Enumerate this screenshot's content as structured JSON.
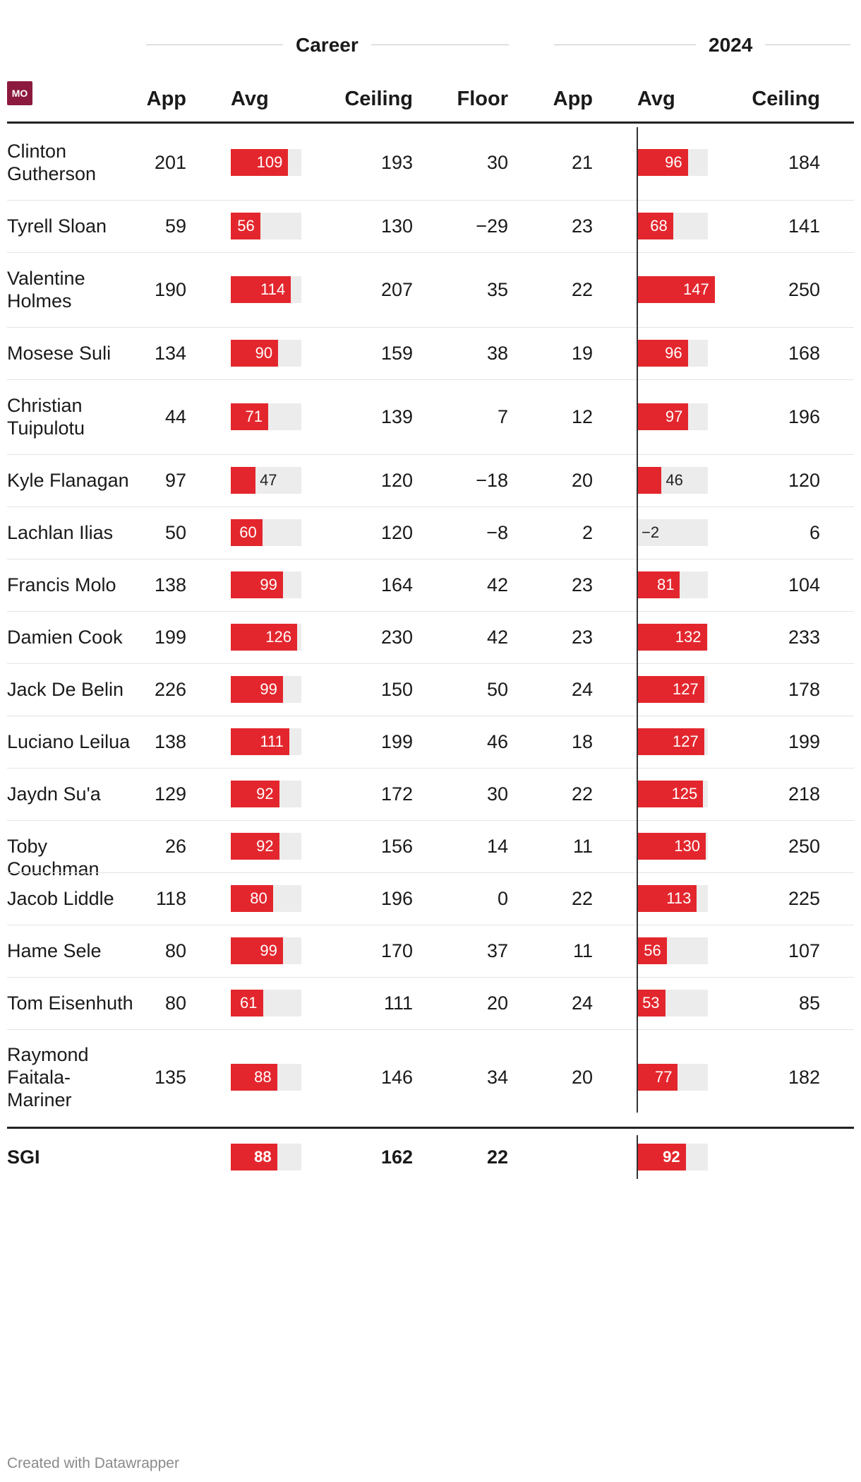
{
  "group_headers": [
    "Career",
    "2024"
  ],
  "team_logo_text": "MO",
  "columns": [
    "App",
    "Avg",
    "Ceiling",
    "Floor",
    "App",
    "Avg",
    "Ceiling"
  ],
  "chart_data": {
    "type": "table",
    "bar_columns": [
      "Career Avg",
      "2024 Avg"
    ],
    "colors": {
      "bar": "#e3262d",
      "track": "#ececec",
      "logo": "#8b1a3e"
    },
    "rows": [
      {
        "name": "Clinton Gutherson",
        "career_app": "201",
        "career_avg": 109,
        "ceiling": "193",
        "floor": "30",
        "app_2024": "21",
        "avg_2024": 96,
        "ceiling_2024": "184"
      },
      {
        "name": "Tyrell Sloan",
        "career_app": "59",
        "career_avg": 56,
        "ceiling": "130",
        "floor": "−29",
        "app_2024": "23",
        "avg_2024": 68,
        "ceiling_2024": "141"
      },
      {
        "name": "Valentine Holmes",
        "career_app": "190",
        "career_avg": 114,
        "ceiling": "207",
        "floor": "35",
        "app_2024": "22",
        "avg_2024": 147,
        "ceiling_2024": "250"
      },
      {
        "name": "Mosese Suli",
        "career_app": "134",
        "career_avg": 90,
        "ceiling": "159",
        "floor": "38",
        "app_2024": "19",
        "avg_2024": 96,
        "ceiling_2024": "168"
      },
      {
        "name": "Christian Tuipulotu",
        "career_app": "44",
        "career_avg": 71,
        "ceiling": "139",
        "floor": "7",
        "app_2024": "12",
        "avg_2024": 97,
        "ceiling_2024": "196"
      },
      {
        "name": "Kyle Flanagan",
        "career_app": "97",
        "career_avg": 47,
        "ceiling": "120",
        "floor": "−18",
        "app_2024": "20",
        "avg_2024": 46,
        "ceiling_2024": "120"
      },
      {
        "name": "Lachlan Ilias",
        "career_app": "50",
        "career_avg": 60,
        "ceiling": "120",
        "floor": "−8",
        "app_2024": "2",
        "avg_2024": -2,
        "ceiling_2024": "6"
      },
      {
        "name": "Francis Molo",
        "career_app": "138",
        "career_avg": 99,
        "ceiling": "164",
        "floor": "42",
        "app_2024": "23",
        "avg_2024": 81,
        "ceiling_2024": "104"
      },
      {
        "name": "Damien Cook",
        "career_app": "199",
        "career_avg": 126,
        "ceiling": "230",
        "floor": "42",
        "app_2024": "23",
        "avg_2024": 132,
        "ceiling_2024": "233"
      },
      {
        "name": "Jack De Belin",
        "career_app": "226",
        "career_avg": 99,
        "ceiling": "150",
        "floor": "50",
        "app_2024": "24",
        "avg_2024": 127,
        "ceiling_2024": "178"
      },
      {
        "name": "Luciano Leilua",
        "career_app": "138",
        "career_avg": 111,
        "ceiling": "199",
        "floor": "46",
        "app_2024": "18",
        "avg_2024": 127,
        "ceiling_2024": "199"
      },
      {
        "name": "Jaydn Su'a",
        "career_app": "129",
        "career_avg": 92,
        "ceiling": "172",
        "floor": "30",
        "app_2024": "22",
        "avg_2024": 125,
        "ceiling_2024": "218"
      },
      {
        "name": "Toby Couchman",
        "career_app": "26",
        "career_avg": 92,
        "ceiling": "156",
        "floor": "14",
        "app_2024": "11",
        "avg_2024": 130,
        "ceiling_2024": "250"
      },
      {
        "name": "Jacob Liddle",
        "career_app": "118",
        "career_avg": 80,
        "ceiling": "196",
        "floor": "0",
        "app_2024": "22",
        "avg_2024": 113,
        "ceiling_2024": "225"
      },
      {
        "name": "Hame Sele",
        "career_app": "80",
        "career_avg": 99,
        "ceiling": "170",
        "floor": "37",
        "app_2024": "11",
        "avg_2024": 56,
        "ceiling_2024": "107"
      },
      {
        "name": "Tom Eisenhuth",
        "career_app": "80",
        "career_avg": 61,
        "ceiling": "111",
        "floor": "20",
        "app_2024": "24",
        "avg_2024": 53,
        "ceiling_2024": "85"
      },
      {
        "name": "Raymond Faitala-Mariner",
        "career_app": "135",
        "career_avg": 88,
        "ceiling": "146",
        "floor": "34",
        "app_2024": "20",
        "avg_2024": 77,
        "ceiling_2024": "182"
      }
    ],
    "total": {
      "name": "SGI",
      "career_app": "",
      "career_avg": 88,
      "ceiling": "162",
      "floor": "22",
      "app_2024": "",
      "avg_2024": 92,
      "ceiling_2024": ""
    }
  },
  "footer": "Created with Datawrapper"
}
